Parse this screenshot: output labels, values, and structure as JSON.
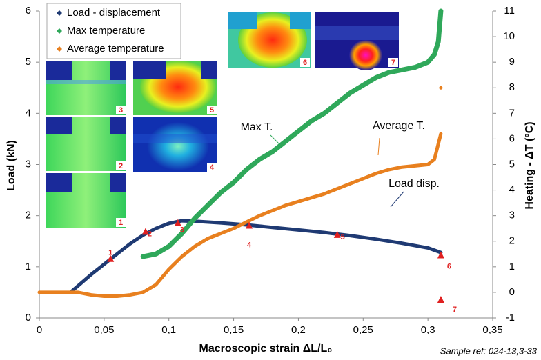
{
  "chart_data": {
    "type": "line",
    "x_label": "Macroscopic strain ΔL/L₀",
    "y_label": "Load (kN)",
    "y2_label": "Heating - ΔT (°C)",
    "footnote": "Sample ref: 024-13,3-33",
    "xlim": [
      0,
      0.35
    ],
    "xticks": [
      0,
      {
        "value": 0.05,
        "label": "0,05"
      },
      {
        "value": 0.1,
        "label": "0,1"
      },
      {
        "value": 0.15,
        "label": "0,15"
      },
      {
        "value": 0.2,
        "label": "0,2"
      },
      {
        "value": 0.25,
        "label": "0,25"
      },
      {
        "value": 0.3,
        "label": "0,3"
      },
      {
        "value": 0.35,
        "label": "0,35"
      }
    ],
    "ylim": [
      0,
      6
    ],
    "yticks": [
      0,
      1,
      2,
      3,
      4,
      5,
      6
    ],
    "y2lim": [
      -1,
      11
    ],
    "y2ticks": [
      -1,
      0,
      1,
      2,
      3,
      4,
      5,
      6,
      7,
      8,
      9,
      10,
      11
    ],
    "legend": "top-left",
    "series": [
      {
        "name": "Load - displacement",
        "color": "#1f3a73",
        "axis": "y",
        "x": [
          0.025,
          0.04,
          0.055,
          0.07,
          0.08,
          0.09,
          0.1,
          0.11,
          0.12,
          0.14,
          0.16,
          0.18,
          0.2,
          0.22,
          0.24,
          0.26,
          0.28,
          0.3,
          0.31
        ],
        "values": [
          0.52,
          0.85,
          1.15,
          1.45,
          1.62,
          1.75,
          1.85,
          1.9,
          1.89,
          1.86,
          1.82,
          1.77,
          1.72,
          1.67,
          1.61,
          1.54,
          1.46,
          1.37,
          1.28
        ]
      },
      {
        "name": "Max temperature",
        "color": "#2fa85a",
        "axis": "y2",
        "x": [
          0.08,
          0.09,
          0.1,
          0.11,
          0.12,
          0.13,
          0.14,
          0.15,
          0.16,
          0.17,
          0.18,
          0.19,
          0.2,
          0.21,
          0.22,
          0.23,
          0.24,
          0.25,
          0.26,
          0.27,
          0.28,
          0.29,
          0.3,
          0.305,
          0.308,
          0.31
        ],
        "values": [
          1.4,
          1.5,
          1.8,
          2.3,
          2.9,
          3.4,
          3.9,
          4.3,
          4.8,
          5.2,
          5.5,
          5.9,
          6.3,
          6.7,
          7.0,
          7.4,
          7.8,
          8.1,
          8.4,
          8.6,
          8.7,
          8.8,
          9.0,
          9.3,
          9.8,
          11
        ]
      },
      {
        "name": "Average temperature",
        "color": "#e8801f",
        "axis": "y2",
        "x": [
          0,
          0.02,
          0.03,
          0.04,
          0.05,
          0.06,
          0.07,
          0.08,
          0.09,
          0.1,
          0.11,
          0.12,
          0.13,
          0.14,
          0.15,
          0.16,
          0.17,
          0.18,
          0.19,
          0.2,
          0.21,
          0.22,
          0.23,
          0.24,
          0.25,
          0.26,
          0.27,
          0.28,
          0.29,
          0.3,
          0.305,
          0.31,
          0.31,
          0.31
        ],
        "values": [
          0,
          0,
          0,
          -0.1,
          -0.15,
          -0.15,
          -0.1,
          0,
          0.3,
          0.9,
          1.4,
          1.8,
          2.1,
          2.3,
          2.5,
          2.75,
          3.0,
          3.2,
          3.4,
          3.55,
          3.7,
          3.85,
          4.05,
          4.25,
          4.45,
          4.65,
          4.8,
          4.9,
          4.95,
          5.0,
          5.2,
          6.2,
          null,
          8.0
        ]
      }
    ],
    "markers": {
      "color": "#e02020",
      "x": [
        0.055,
        0.082,
        0.107,
        0.162,
        0.23,
        0.31,
        0.31
      ],
      "values": [
        1.15,
        1.68,
        1.85,
        1.8,
        1.62,
        1.22,
        0.35
      ],
      "labels": [
        "1",
        "2",
        "3",
        "4",
        "5",
        "6",
        "7"
      ]
    },
    "annotations": [
      "Max T.",
      "Average T.",
      "Load disp."
    ],
    "insets": [
      "3",
      "5",
      "2",
      "4",
      "1",
      "6",
      "7"
    ]
  }
}
